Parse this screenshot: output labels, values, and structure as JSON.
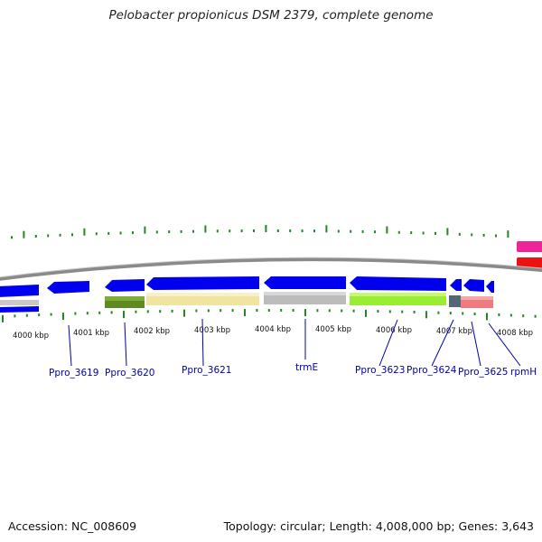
{
  "title": "Pelobacter propionicus DSM 2379, complete genome",
  "footer": {
    "accession": "Accession: NC_008609",
    "summary": "Topology: circular; Length: 4,008,000 bp; Genes: 3,643"
  },
  "colors": {
    "backbone": "#8a8a8a",
    "ticks": "#228822",
    "gene_label": "#0000aa",
    "strand_arrow": "#0000ee"
  },
  "kbp_labels": [
    "4000 kbp",
    "4001 kbp",
    "4002 kbp",
    "4003 kbp",
    "4004 kbp",
    "4005 kbp",
    "4006 kbp",
    "4007 kbp",
    "4008 kbp"
  ],
  "gene_labels": [
    "Ppro_3619",
    "Ppro_3620",
    "Ppro_3621",
    "trmE",
    "Ppro_3623",
    "Ppro_3624",
    "Ppro_3625",
    "rpmH"
  ]
}
